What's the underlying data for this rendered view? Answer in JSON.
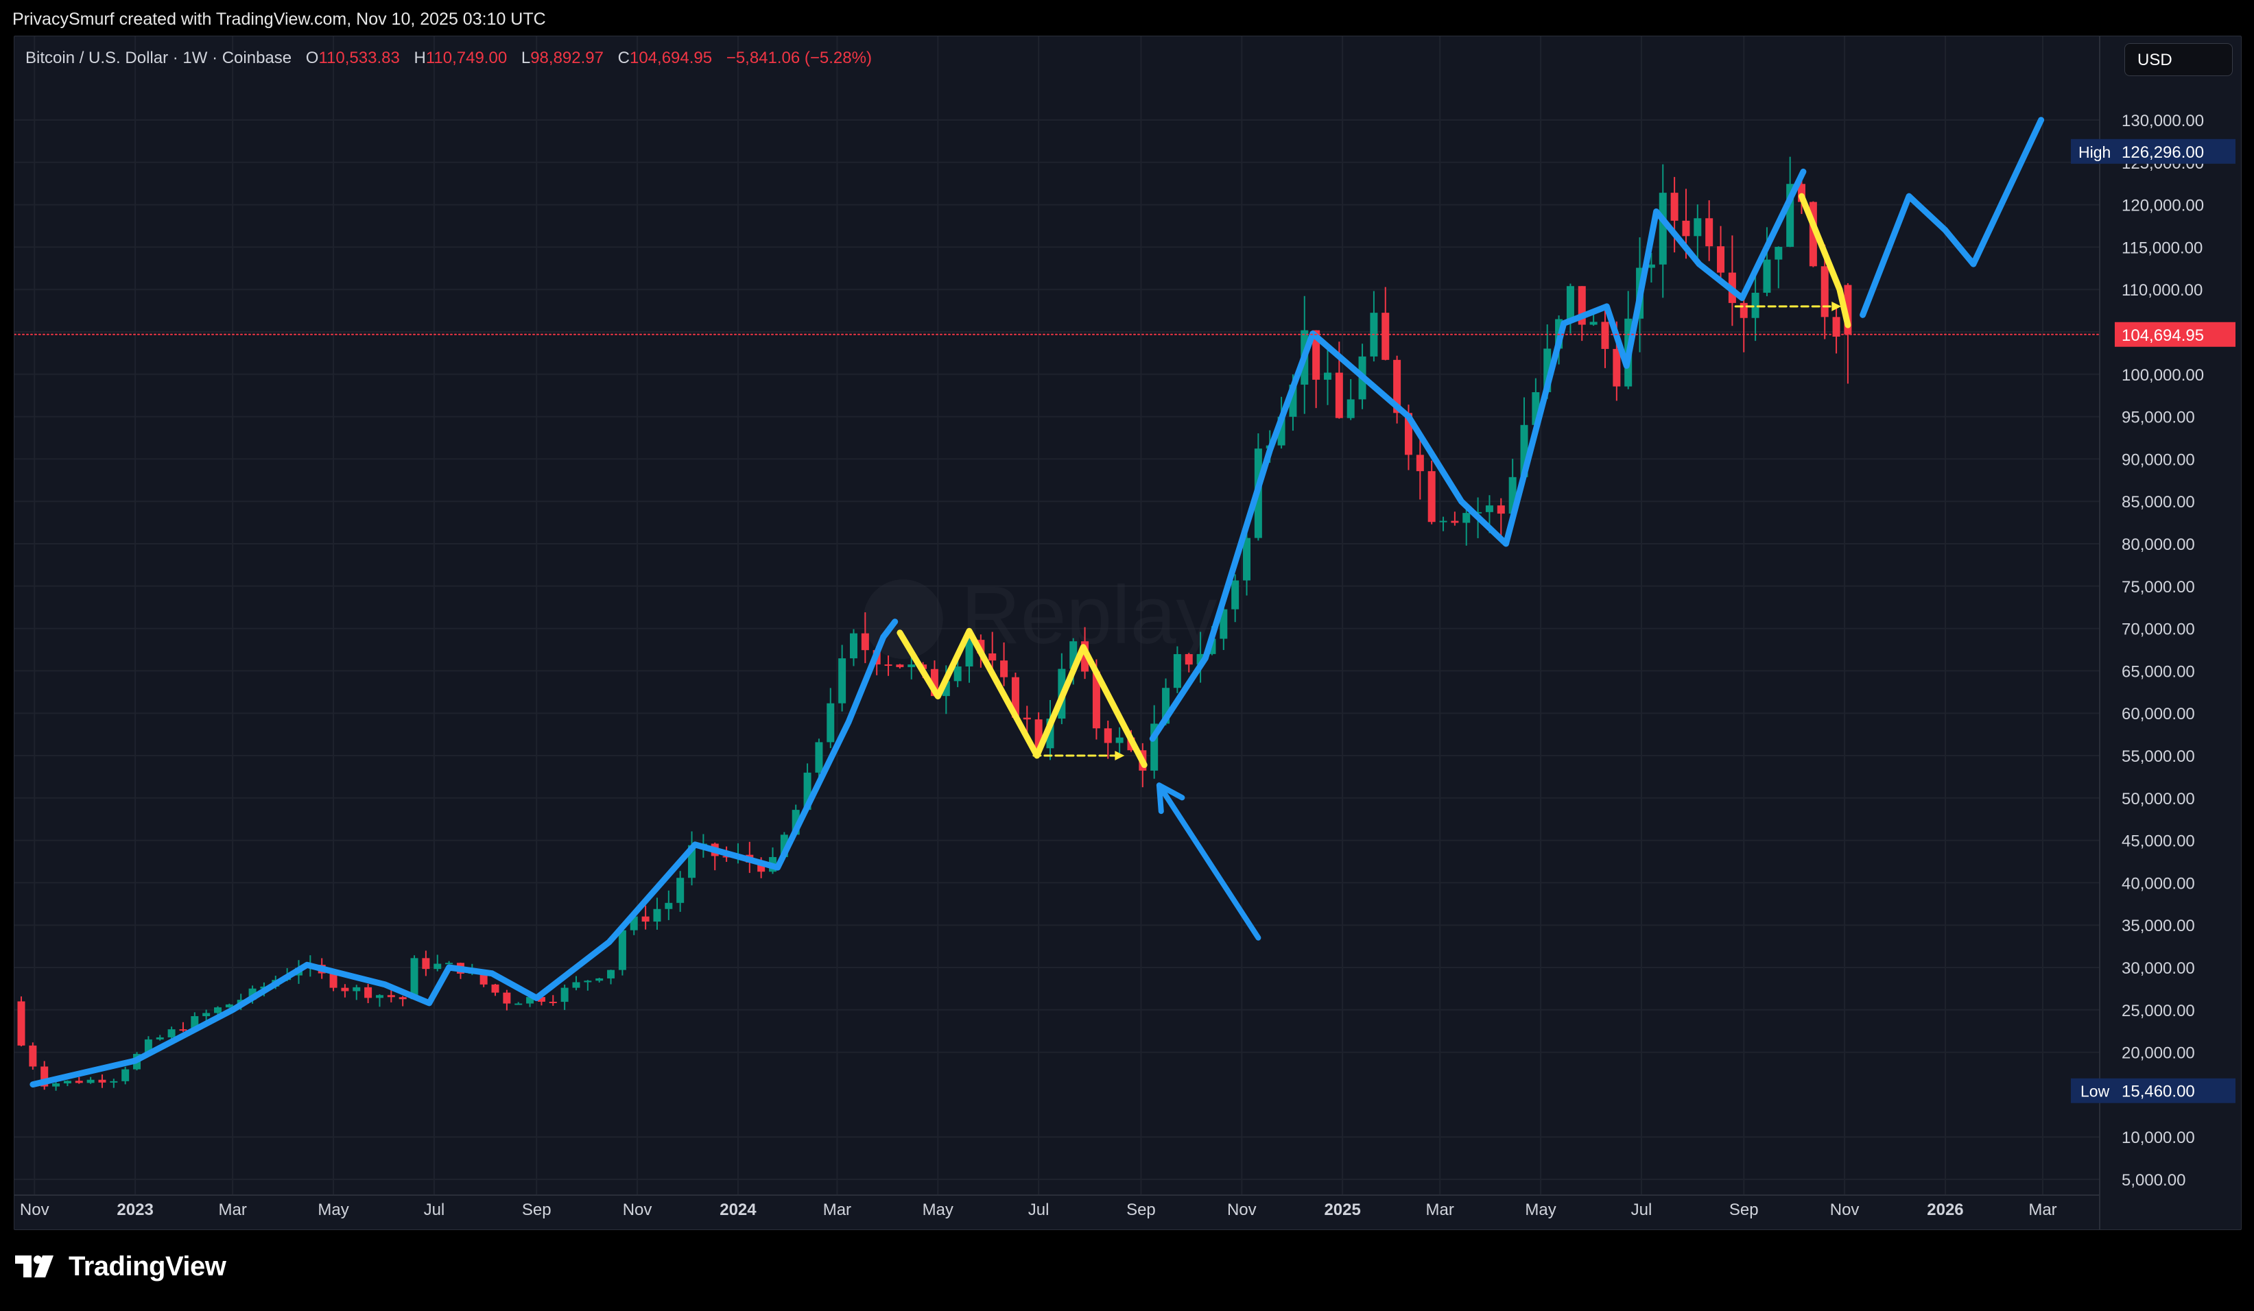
{
  "caption": {
    "author": "PrivacySmurf",
    "text": "created with TradingView.com, Nov 10, 2025 03:10 UTC"
  },
  "symbol": {
    "name": "Bitcoin / U.S. Dollar · 1W · Coinbase",
    "open_label": "O",
    "open": "110,533.83",
    "high_label": "H",
    "high": "110,749.00",
    "low_label": "L",
    "low": "98,892.97",
    "close_label": "C",
    "close": "104,694.95",
    "change": "−5,841.06 (−5.28%)"
  },
  "currency": "USD",
  "watermark": "Replay",
  "brand": {
    "name": "TradingView"
  },
  "colors": {
    "background": "#131722",
    "up_candle": "#089981",
    "down_candle": "#f23645",
    "trend_line": "#2196f3",
    "pattern_line": "#ffeb3b",
    "grid": "#1e222d",
    "high_badge": "#142a5c",
    "price_tag": "#f23645"
  },
  "icons": [
    "tradingview-logo-icon",
    "replay-icon"
  ],
  "chart_data": {
    "type": "candlestick",
    "interval": "1W",
    "y_axis": {
      "min": 5000,
      "max": 135000,
      "scale": "linear",
      "position": "right",
      "ticks": [
        5000,
        10000,
        20000,
        25000,
        30000,
        35000,
        40000,
        45000,
        50000,
        55000,
        60000,
        65000,
        70000,
        75000,
        80000,
        85000,
        90000,
        95000,
        100000,
        105000,
        110000,
        115000,
        120000,
        125000,
        130000
      ],
      "tick_labels": [
        "5,000.00",
        "10,000.00",
        "20,000.00",
        "25,000.00",
        "30,000.00",
        "35,000.00",
        "40,000.00",
        "45,000.00",
        "50,000.00",
        "55,000.00",
        "60,000.00",
        "65,000.00",
        "70,000.00",
        "75,000.00",
        "80,000.00",
        "85,000.00",
        "90,000.00",
        "95,000.00",
        "100,000.00",
        "105,000.00",
        "110,000.00",
        "115,000.00",
        "120,000.00",
        "125,000.00",
        "130,000.00"
      ]
    },
    "x_axis": {
      "start": "2022-10-24",
      "end": "2026-03-23",
      "ticks": [
        {
          "label": "Nov",
          "date": "2022-11-01",
          "bold": false
        },
        {
          "label": "2023",
          "date": "2023-01-01",
          "bold": true
        },
        {
          "label": "Mar",
          "date": "2023-03-01",
          "bold": false
        },
        {
          "label": "May",
          "date": "2023-05-01",
          "bold": false
        },
        {
          "label": "Jul",
          "date": "2023-07-01",
          "bold": false
        },
        {
          "label": "Sep",
          "date": "2023-09-01",
          "bold": false
        },
        {
          "label": "Nov",
          "date": "2023-11-01",
          "bold": false
        },
        {
          "label": "2024",
          "date": "2024-01-01",
          "bold": true
        },
        {
          "label": "Mar",
          "date": "2024-03-01",
          "bold": false
        },
        {
          "label": "May",
          "date": "2024-05-01",
          "bold": false
        },
        {
          "label": "Jul",
          "date": "2024-07-01",
          "bold": false
        },
        {
          "label": "Sep",
          "date": "2024-09-01",
          "bold": false
        },
        {
          "label": "Nov",
          "date": "2024-11-01",
          "bold": false
        },
        {
          "label": "2025",
          "date": "2025-01-01",
          "bold": true
        },
        {
          "label": "Mar",
          "date": "2025-03-01",
          "bold": false
        },
        {
          "label": "May",
          "date": "2025-05-01",
          "bold": false
        },
        {
          "label": "Jul",
          "date": "2025-07-01",
          "bold": false
        },
        {
          "label": "Sep",
          "date": "2025-09-01",
          "bold": false
        },
        {
          "label": "Nov",
          "date": "2025-11-01",
          "bold": false
        },
        {
          "label": "2026",
          "date": "2026-01-01",
          "bold": true
        },
        {
          "label": "Mar",
          "date": "2026-03-01",
          "bold": false
        }
      ]
    },
    "closes": [
      {
        "date": "2022-10-24",
        "close": 20800
      },
      {
        "date": "2022-11-07",
        "close": 16300
      },
      {
        "date": "2022-12-19",
        "close": 16900
      },
      {
        "date": "2023-01-09",
        "close": 21000
      },
      {
        "date": "2023-02-13",
        "close": 24500
      },
      {
        "date": "2023-03-13",
        "close": 26900
      },
      {
        "date": "2023-04-10",
        "close": 30300
      },
      {
        "date": "2023-05-08",
        "close": 27600
      },
      {
        "date": "2023-06-12",
        "close": 26300
      },
      {
        "date": "2023-06-19",
        "close": 30500
      },
      {
        "date": "2023-07-17",
        "close": 29900
      },
      {
        "date": "2023-08-14",
        "close": 26100
      },
      {
        "date": "2023-09-11",
        "close": 26600
      },
      {
        "date": "2023-10-16",
        "close": 30000
      },
      {
        "date": "2023-10-23",
        "close": 34500
      },
      {
        "date": "2023-11-20",
        "close": 37700
      },
      {
        "date": "2023-12-04",
        "close": 43800
      },
      {
        "date": "2024-01-08",
        "close": 42500
      },
      {
        "date": "2024-01-22",
        "close": 42000
      },
      {
        "date": "2024-02-12",
        "close": 51800
      },
      {
        "date": "2024-02-26",
        "close": 62000
      },
      {
        "date": "2024-03-11",
        "close": 68300
      },
      {
        "date": "2024-04-08",
        "close": 66000
      },
      {
        "date": "2024-04-29",
        "close": 62900
      },
      {
        "date": "2024-05-20",
        "close": 69200
      },
      {
        "date": "2024-07-01",
        "close": 56500
      },
      {
        "date": "2024-07-22",
        "close": 68200
      },
      {
        "date": "2024-08-05",
        "close": 58700
      },
      {
        "date": "2024-09-02",
        "close": 54200
      },
      {
        "date": "2024-09-23",
        "close": 65700
      },
      {
        "date": "2024-10-14",
        "close": 68400
      },
      {
        "date": "2024-11-04",
        "close": 80400
      },
      {
        "date": "2024-11-11",
        "close": 90500
      },
      {
        "date": "2024-12-09",
        "close": 104300
      },
      {
        "date": "2024-12-30",
        "close": 94500
      },
      {
        "date": "2025-01-20",
        "close": 104900
      },
      {
        "date": "2025-02-24",
        "close": 84300
      },
      {
        "date": "2025-04-07",
        "close": 83700
      },
      {
        "date": "2025-04-21",
        "close": 94200
      },
      {
        "date": "2025-05-19",
        "close": 109000
      },
      {
        "date": "2025-06-16",
        "close": 101000
      },
      {
        "date": "2025-07-14",
        "close": 119000
      },
      {
        "date": "2025-08-11",
        "close": 117500
      },
      {
        "date": "2025-09-01",
        "close": 108000
      },
      {
        "date": "2025-10-06",
        "close": 123300
      },
      {
        "date": "2025-10-13",
        "close": 110000
      },
      {
        "date": "2025-11-03",
        "close": 104694.95
      }
    ],
    "annotations": {
      "trend_line": [
        {
          "date": "2022-10-31",
          "price": 16200
        },
        {
          "date": "2023-01-01",
          "price": 19000
        },
        {
          "date": "2023-03-01",
          "price": 25000
        },
        {
          "date": "2023-04-15",
          "price": 30300
        },
        {
          "date": "2023-06-01",
          "price": 28000
        },
        {
          "date": "2023-06-28",
          "price": 25800
        },
        {
          "date": "2023-07-10",
          "price": 30000
        },
        {
          "date": "2023-08-05",
          "price": 29300
        },
        {
          "date": "2023-09-01",
          "price": 26400
        },
        {
          "date": "2023-10-15",
          "price": 33000
        },
        {
          "date": "2023-12-06",
          "price": 44500
        },
        {
          "date": "2024-01-25",
          "price": 41800
        },
        {
          "date": "2024-03-08",
          "price": 59000
        },
        {
          "date": "2024-03-29",
          "price": 69000
        },
        {
          "date": "2024-04-05",
          "price": 70800
        }
      ],
      "trend_line_2": [
        {
          "date": "2024-09-08",
          "price": 57000
        },
        {
          "date": "2024-10-10",
          "price": 66500
        },
        {
          "date": "2024-11-18",
          "price": 91000
        },
        {
          "date": "2024-12-14",
          "price": 104800
        },
        {
          "date": "2025-02-10",
          "price": 95000
        },
        {
          "date": "2025-03-14",
          "price": 85000
        },
        {
          "date": "2025-04-10",
          "price": 80000
        },
        {
          "date": "2025-05-15",
          "price": 106000
        },
        {
          "date": "2025-06-10",
          "price": 108000
        },
        {
          "date": "2025-06-22",
          "price": 101000
        },
        {
          "date": "2025-07-10",
          "price": 119200
        },
        {
          "date": "2025-08-05",
          "price": 113000
        },
        {
          "date": "2025-08-31",
          "price": 109000
        },
        {
          "date": "2025-10-07",
          "price": 123900
        }
      ],
      "projection": [
        {
          "date": "2025-11-12",
          "price": 107000
        },
        {
          "date": "2025-12-10",
          "price": 121000
        },
        {
          "date": "2026-01-01",
          "price": 117000
        },
        {
          "date": "2026-01-18",
          "price": 113000
        },
        {
          "date": "2026-02-28",
          "price": 130000
        }
      ],
      "pattern_1": [
        {
          "date": "2024-04-08",
          "price": 69500
        },
        {
          "date": "2024-05-01",
          "price": 62000
        },
        {
          "date": "2024-05-20",
          "price": 69700
        },
        {
          "date": "2024-06-30",
          "price": 55000
        },
        {
          "date": "2024-07-28",
          "price": 67800
        },
        {
          "date": "2024-09-03",
          "price": 53900
        }
      ],
      "pattern_2": [
        {
          "date": "2025-10-06",
          "price": 121000
        },
        {
          "date": "2025-10-29",
          "price": 110000
        },
        {
          "date": "2025-11-03",
          "price": 105800
        }
      ],
      "neckline_1": {
        "from": "2024-06-28",
        "to": "2024-08-22",
        "price": 55000
      },
      "neckline_2": {
        "from": "2025-08-27",
        "to": "2025-10-30",
        "price": 108000
      },
      "arrow": {
        "from_date": "2024-11-11",
        "from_price": 33500,
        "to_date": "2024-09-12",
        "to_price": 51500
      }
    },
    "high": {
      "label": "High",
      "value": "126,296.00",
      "price": 126296
    },
    "low": {
      "label": "Low",
      "value": "15,460.00",
      "price": 15460
    },
    "last_price": {
      "value": "104,694.95",
      "price": 104694.95
    }
  }
}
